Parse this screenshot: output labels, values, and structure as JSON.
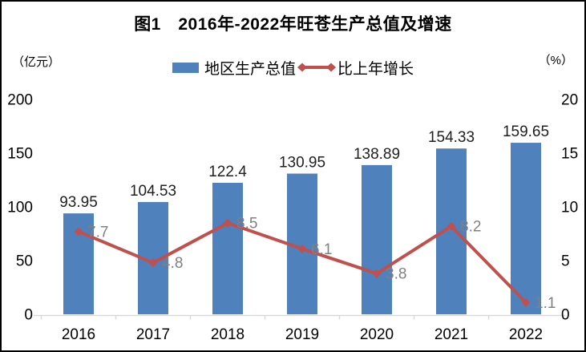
{
  "title": "图1　2016年-2022年旺苍生产总值及增速",
  "left_axis": {
    "unit": "（亿元）",
    "ticks": [
      0,
      50,
      100,
      150,
      200
    ],
    "max": 200
  },
  "right_axis": {
    "unit": "（%）",
    "ticks": [
      0,
      5,
      10,
      15,
      20
    ],
    "max": 20
  },
  "legend": {
    "bar_label": "地区生产总值",
    "line_label": "比上年增长"
  },
  "colors": {
    "bar": "#4f81bd",
    "line": "#c0504d",
    "bar_label": "#1f1f1f",
    "line_label": "#808080",
    "axis_text": "#000000",
    "axis_line": "#d9d9d9"
  },
  "chart_data": {
    "type": "bar+line combo",
    "title": "图1　2016年-2022年旺苍生产总值及增速",
    "categories": [
      "2016",
      "2017",
      "2018",
      "2019",
      "2020",
      "2021",
      "2022"
    ],
    "series": [
      {
        "name": "地区生产总值",
        "type": "bar",
        "axis": "left",
        "unit": "亿元",
        "values": [
          93.95,
          104.53,
          122.4,
          130.95,
          138.89,
          154.33,
          159.65
        ]
      },
      {
        "name": "比上年增长",
        "type": "line",
        "axis": "right",
        "unit": "%",
        "values": [
          7.7,
          4.8,
          8.5,
          6.1,
          3.8,
          8.2,
          1.1
        ]
      }
    ],
    "left_ylim": [
      0,
      200
    ],
    "right_ylim": [
      0,
      20
    ],
    "grid": false,
    "legend_position": "top-center",
    "data_labels": true
  }
}
